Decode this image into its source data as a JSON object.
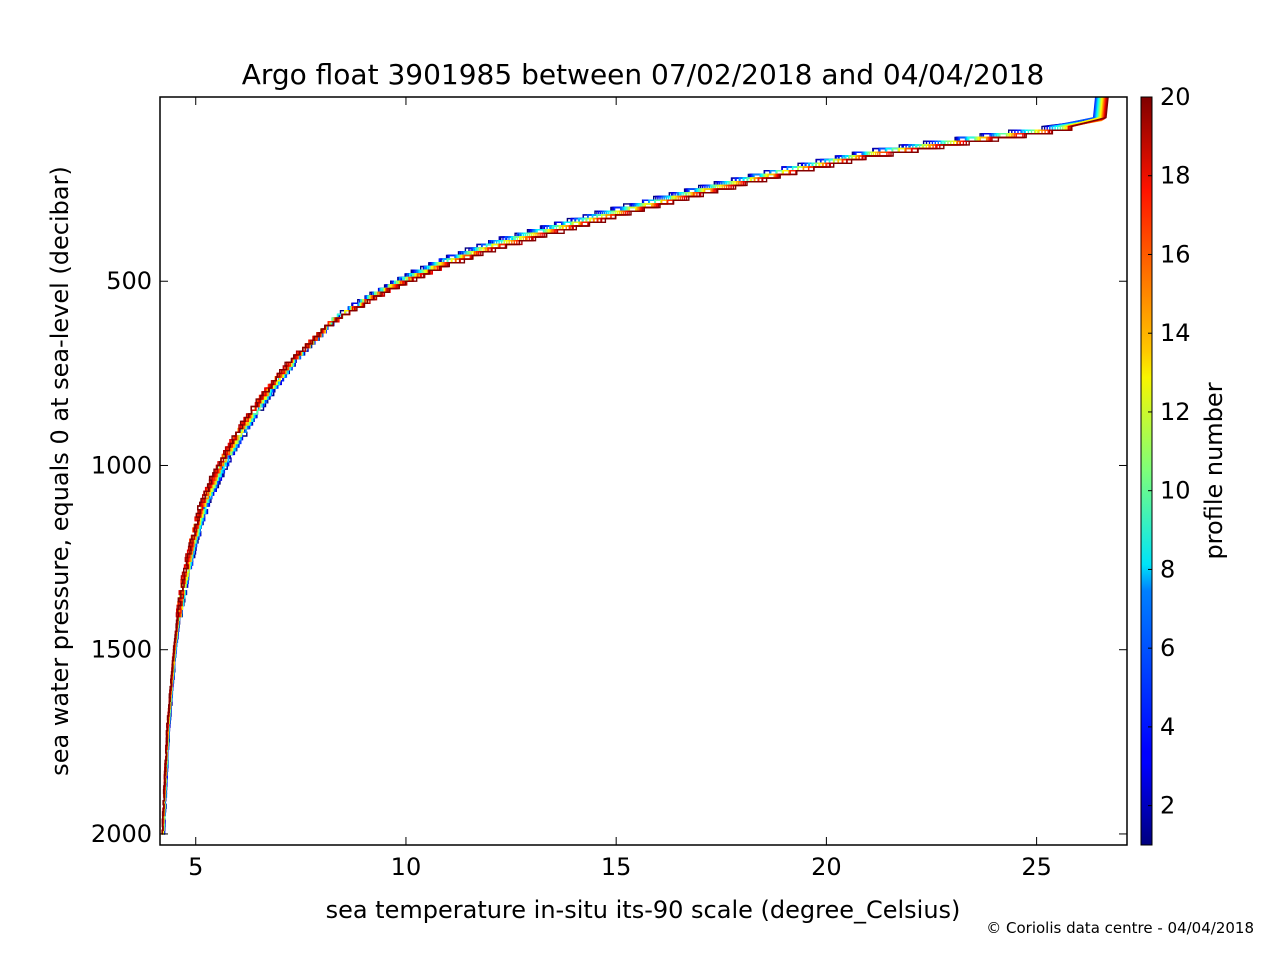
{
  "chart_data": {
    "type": "line",
    "title": "Argo float 3901985 between 07/02/2018 and 04/04/2018",
    "xlabel": "sea temperature in-situ its-90 scale (degree_Celsius)",
    "ylabel": "sea water pressure, equals 0 at sea-level (decibar)",
    "xlim": [
      4.15,
      27.15
    ],
    "ylim": [
      2030,
      0
    ],
    "y_inverted": true,
    "x_ticks": [
      5,
      10,
      15,
      20,
      25
    ],
    "y_ticks": [
      500,
      1000,
      1500,
      2000
    ],
    "grid": false,
    "colorbar": {
      "label": "profile number",
      "range": [
        1,
        20
      ],
      "ticks": [
        2,
        4,
        6,
        8,
        10,
        12,
        14,
        16,
        18,
        20
      ],
      "colormap": "jet"
    },
    "profile_count": 20,
    "reference_profile": {
      "description_points": [
        {
          "pressure": 0,
          "temperature": 26.5
        },
        {
          "pressure": 60,
          "temperature": 26.4
        },
        {
          "pressure": 80,
          "temperature": 25.6
        },
        {
          "pressure": 110,
          "temperature": 23.5
        },
        {
          "pressure": 150,
          "temperature": 21.0
        },
        {
          "pressure": 200,
          "temperature": 18.9
        },
        {
          "pressure": 250,
          "temperature": 17.0
        },
        {
          "pressure": 300,
          "temperature": 15.3
        },
        {
          "pressure": 350,
          "temperature": 13.6
        },
        {
          "pressure": 400,
          "temperature": 12.0
        },
        {
          "pressure": 450,
          "temperature": 10.8
        },
        {
          "pressure": 500,
          "temperature": 9.8
        },
        {
          "pressure": 550,
          "temperature": 9.0
        },
        {
          "pressure": 600,
          "temperature": 8.3
        },
        {
          "pressure": 700,
          "temperature": 7.4
        },
        {
          "pressure": 800,
          "temperature": 6.7
        },
        {
          "pressure": 900,
          "temperature": 6.1
        },
        {
          "pressure": 1000,
          "temperature": 5.6
        },
        {
          "pressure": 1100,
          "temperature": 5.2
        },
        {
          "pressure": 1200,
          "temperature": 4.95
        },
        {
          "pressure": 1300,
          "temperature": 4.75
        },
        {
          "pressure": 1400,
          "temperature": 4.6
        },
        {
          "pressure": 1500,
          "temperature": 4.5
        },
        {
          "pressure": 1700,
          "temperature": 4.35
        },
        {
          "pressure": 2000,
          "temperature": 4.22
        }
      ]
    }
  },
  "credit": "© Coriolis data centre - 04/04/2018"
}
